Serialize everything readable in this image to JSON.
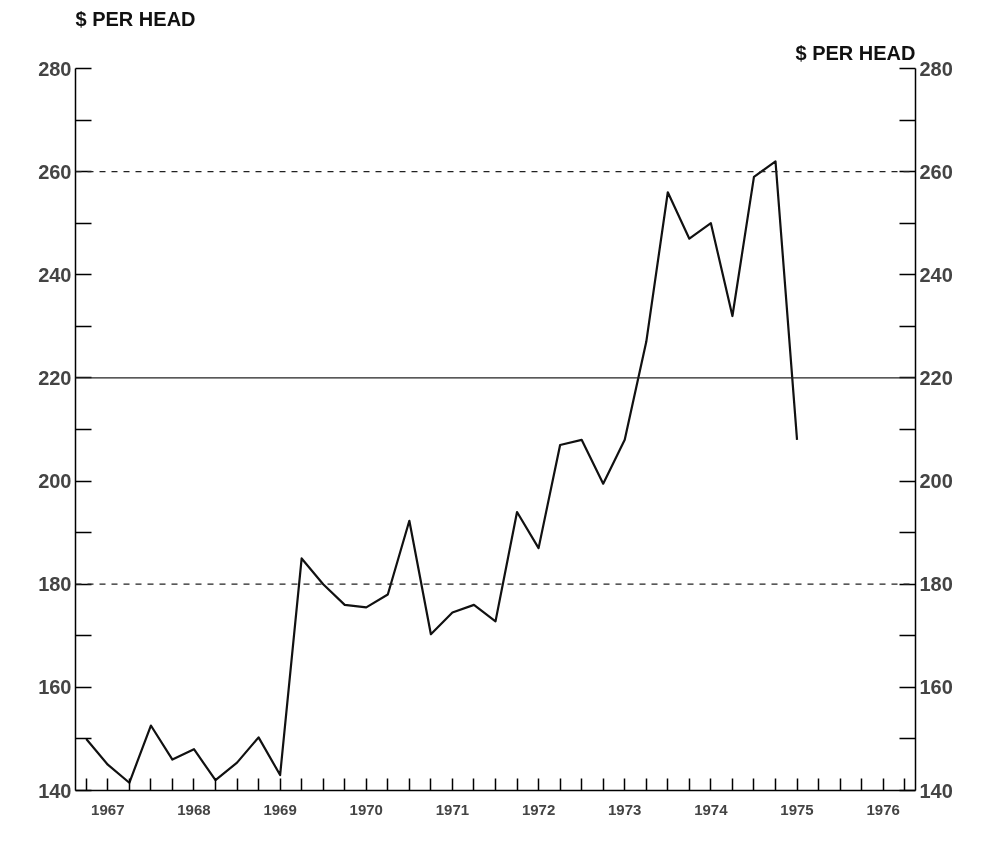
{
  "chart_data": {
    "type": "line",
    "ylabel": "$ PER HEAD",
    "y2label": "$ PER HEAD",
    "categories": [
      null,
      "1967",
      null,
      null,
      null,
      "1968",
      null,
      null,
      null,
      "1969",
      null,
      null,
      null,
      "1970",
      null,
      null,
      null,
      "1971",
      null,
      null,
      null,
      "1972",
      null,
      null,
      null,
      "1973",
      null,
      null,
      null,
      "1974",
      null,
      null,
      null,
      "1975",
      null,
      null,
      null,
      "1976",
      null
    ],
    "series": [
      {
        "color": "#111111",
        "values": [
          150,
          145,
          141.5,
          152.6,
          146,
          148,
          142,
          145.4,
          150.3,
          143,
          185,
          180,
          176,
          175.5,
          178,
          192.3,
          170.3,
          174.5,
          176,
          172.8,
          194,
          187,
          207,
          208,
          199.5,
          208,
          227,
          256,
          247,
          250,
          232,
          259,
          262,
          208,
          null,
          null,
          null,
          null,
          null
        ]
      }
    ],
    "ylim": [
      140,
      280
    ],
    "yticks": [
      140,
      {
        "value": 150,
        "label": null
      },
      160,
      {
        "value": 170,
        "label": null
      },
      180,
      {
        "value": 190,
        "label": null
      },
      200,
      {
        "value": 210,
        "label": null
      },
      220,
      {
        "value": 230,
        "label": null
      },
      240,
      {
        "value": 250,
        "label": null
      },
      260,
      {
        "value": 270,
        "label": null
      },
      280
    ],
    "y2lim": [
      140,
      280
    ],
    "y2ticks": [
      140,
      {
        "value": 150,
        "label": null
      },
      160,
      {
        "value": 170,
        "label": null
      },
      180,
      {
        "value": 190,
        "label": null
      },
      200,
      {
        "value": 210,
        "label": null
      },
      220,
      {
        "value": 230,
        "label": null
      },
      240,
      {
        "value": 250,
        "label": null
      },
      260,
      {
        "value": 270,
        "label": null
      },
      280
    ],
    "ref_lines": [
      {
        "axis": "y",
        "value": 180,
        "color": "#222222",
        "line_style": "dashed"
      },
      {
        "axis": "y",
        "value": 220,
        "color": "#222222",
        "line_style": "solid"
      },
      {
        "axis": "y",
        "value": 260,
        "color": "#222222",
        "line_style": "dashed"
      }
    ],
    "grid": false,
    "marker": "none",
    "line_style": "solid"
  }
}
